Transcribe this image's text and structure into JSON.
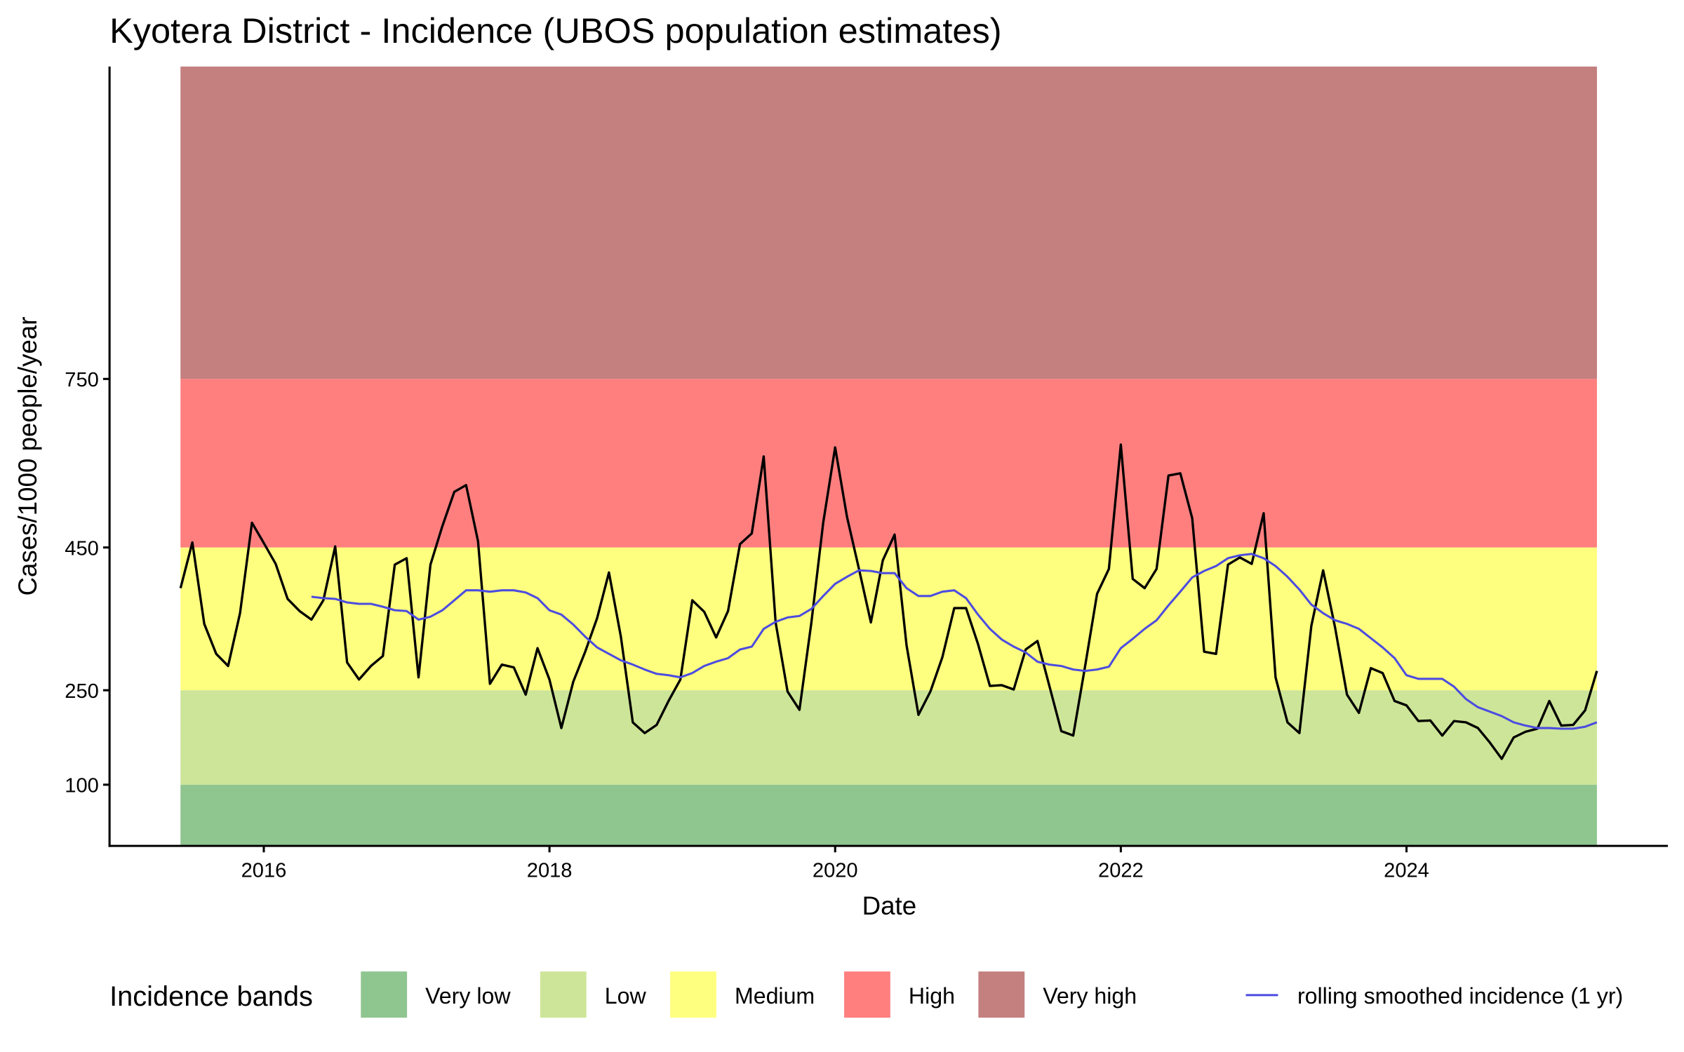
{
  "chart_data": {
    "type": "line",
    "title": "Kyotera District - Incidence (UBOS population estimates)",
    "x_label": "Date",
    "y_label": "Cases/1000 people/year",
    "legend_title": "Incidence bands",
    "legend_position": "bottom",
    "xlim": [
      2014.92,
      2025.83
    ],
    "xticks": [
      2016,
      2018,
      2020,
      2022,
      2024
    ],
    "ylim": [
      0,
      1300
    ],
    "yticks": [
      100,
      250,
      450,
      750
    ],
    "bands": [
      {
        "name": "Very low",
        "color": "#8fc58f",
        "from": 0,
        "to": 100
      },
      {
        "name": "Low",
        "color": "#cde598",
        "from": 100,
        "to": 250
      },
      {
        "name": "Medium",
        "color": "#ffff7f",
        "from": 250,
        "to": 450
      },
      {
        "name": "High",
        "color": "#ff7f7f",
        "from": 450,
        "to": 750
      },
      {
        "name": "Very high",
        "color": "#c47f7f",
        "from": 750,
        "to": 1300
      }
    ],
    "x": [
      "2015-06",
      "2015-07",
      "2015-08",
      "2015-09",
      "2015-10",
      "2015-11",
      "2015-12",
      "2016-01",
      "2016-02",
      "2016-03",
      "2016-04",
      "2016-05",
      "2016-06",
      "2016-07",
      "2016-08",
      "2016-09",
      "2016-10",
      "2016-11",
      "2016-12",
      "2017-01",
      "2017-02",
      "2017-03",
      "2017-04",
      "2017-05",
      "2017-06",
      "2017-07",
      "2017-08",
      "2017-09",
      "2017-10",
      "2017-11",
      "2017-12",
      "2018-01",
      "2018-02",
      "2018-03",
      "2018-04",
      "2018-05",
      "2018-06",
      "2018-07",
      "2018-08",
      "2018-09",
      "2018-10",
      "2018-11",
      "2018-12",
      "2019-01",
      "2019-02",
      "2019-03",
      "2019-04",
      "2019-05",
      "2019-06",
      "2019-07",
      "2019-08",
      "2019-09",
      "2019-10",
      "2019-11",
      "2019-12",
      "2020-01",
      "2020-02",
      "2020-03",
      "2020-04",
      "2020-05",
      "2020-06",
      "2020-07",
      "2020-08",
      "2020-09",
      "2020-10",
      "2020-11",
      "2020-12",
      "2021-01",
      "2021-02",
      "2021-03",
      "2021-04",
      "2021-05",
      "2021-06",
      "2021-07",
      "2021-08",
      "2021-09",
      "2021-10",
      "2021-11",
      "2021-12",
      "2022-01",
      "2022-02",
      "2022-03",
      "2022-04",
      "2022-05",
      "2022-06",
      "2022-07",
      "2022-08",
      "2022-09",
      "2022-10",
      "2022-11",
      "2022-12",
      "2023-01",
      "2023-02",
      "2023-03",
      "2023-04",
      "2023-05",
      "2023-06",
      "2023-07",
      "2023-08",
      "2023-09",
      "2023-10",
      "2023-11",
      "2023-12",
      "2024-01",
      "2024-02",
      "2024-03",
      "2024-04",
      "2024-05",
      "2024-06",
      "2024-07",
      "2024-08",
      "2024-09",
      "2024-10",
      "2024-11",
      "2024-12",
      "2025-01",
      "2025-02",
      "2025-03",
      "2025-04",
      "2025-05"
    ],
    "series": [
      {
        "color": "#000000",
        "values": [
          393,
          459,
          343,
          301,
          284,
          358,
          494,
          458,
          427,
          378,
          361,
          349,
          376,
          452,
          289,
          265,
          284,
          298,
          426,
          435,
          268,
          426,
          488,
          549,
          561,
          461,
          259,
          286,
          282,
          243,
          309,
          265,
          190,
          262,
          304,
          351,
          415,
          325,
          199,
          182,
          195,
          233,
          265,
          376,
          360,
          324,
          361,
          456,
          475,
          612,
          345,
          248,
          219,
          345,
          494,
          628,
          504,
          420,
          345,
          432,
          473,
          313,
          211,
          248,
          296,
          365,
          365,
          315,
          256,
          257,
          251,
          307,
          319,
          256,
          185,
          178,
          284,
          385,
          420,
          633,
          406,
          393,
          420,
          578,
          582,
          502,
          304,
          301,
          426,
          436,
          427,
          511,
          268,
          199,
          182,
          340,
          418,
          338,
          243,
          214,
          281,
          274,
          233,
          226,
          201,
          202,
          178,
          201,
          199,
          190,
          167,
          141,
          175,
          184,
          189,
          233,
          194,
          195,
          218,
          277
        ]
      },
      {
        "name": "rolling smoothed incidence (1 yr)",
        "color": "#4c4ce0",
        "values": [
          null,
          null,
          null,
          null,
          null,
          null,
          null,
          null,
          null,
          null,
          null,
          381,
          379,
          378,
          373,
          371,
          371,
          367,
          362,
          361,
          349,
          353,
          362,
          376,
          390,
          390,
          388,
          390,
          390,
          387,
          379,
          362,
          356,
          342,
          325,
          310,
          301,
          292,
          286,
          279,
          273,
          271,
          268,
          274,
          284,
          290,
          295,
          307,
          311,
          336,
          346,
          352,
          354,
          364,
          382,
          399,
          409,
          418,
          417,
          414,
          414,
          393,
          382,
          382,
          388,
          390,
          379,
          356,
          336,
          321,
          311,
          303,
          290,
          286,
          284,
          279,
          277,
          279,
          283,
          309,
          322,
          336,
          348,
          369,
          388,
          408,
          417,
          424,
          435,
          439,
          441,
          435,
          424,
          409,
          391,
          370,
          358,
          348,
          343,
          336,
          323,
          310,
          295,
          271,
          266,
          266,
          266,
          255,
          236,
          223,
          216,
          209,
          199,
          194,
          190,
          190,
          189,
          189,
          192,
          199
        ]
      }
    ]
  }
}
